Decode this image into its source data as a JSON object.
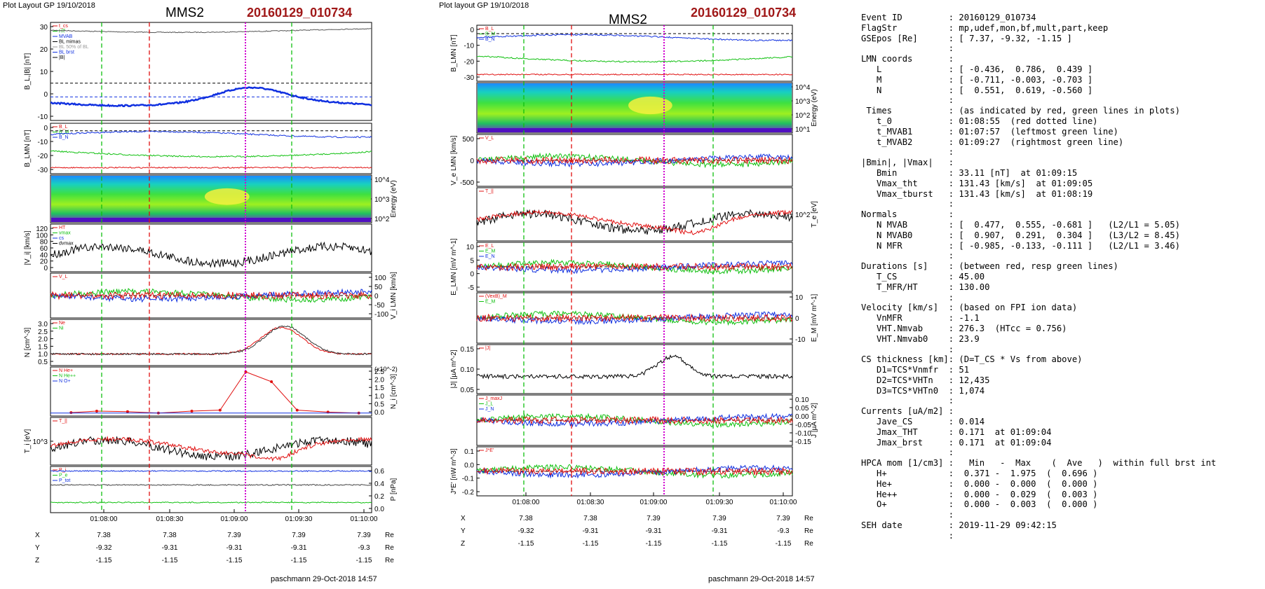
{
  "left": {
    "header": "Plot Layout GP 19/10/2018",
    "spacecraft": "MMS2",
    "event": "20160129_010734",
    "footer": "paschmann 29-Oct-2018 14:57",
    "time_ticks": [
      "01:08:00",
      "01:08:30",
      "01:09:00",
      "01:09:30",
      "01:10:00"
    ],
    "panels": [
      {
        "ylabel": "B_L,|B| [nT]",
        "ticks_left": [
          "30",
          "20",
          "10",
          "0",
          "-10"
        ],
        "legend": [
          "t_cs",
          "HT",
          "MVAB",
          "BL mimas",
          "BL 50% of BL",
          "BL brst",
          "|B|"
        ]
      },
      {
        "ylabel": "B_LMN [nT]",
        "ticks_left": [
          "0",
          "-10",
          "-20",
          "-30"
        ],
        "legend": [
          "B_L",
          "B_M",
          "B_N"
        ]
      },
      {
        "ylabel": "",
        "ticks_right": [
          "10^4",
          "10^3",
          "10^2"
        ],
        "ylabel_right": "Energy (eV)"
      },
      {
        "ylabel": "|V_i| [km/s]",
        "ticks_left": [
          "120",
          "100",
          "80",
          "60",
          "40",
          "20",
          "0"
        ],
        "legend": [
          "HT",
          "vmax",
          "cs",
          "dvmax"
        ]
      },
      {
        "ylabel": "",
        "ticks_right": [
          "100",
          "50",
          "0",
          "-50",
          "-100"
        ],
        "ylabel_right": "V_i LMN [km/s]",
        "legend": [
          "V_L"
        ]
      },
      {
        "ylabel": "N [cm^-3]",
        "ticks_left": [
          "3.0",
          "2.5",
          "2.0",
          "1.5",
          "1.0",
          "0.5"
        ],
        "legend": [
          "Ne",
          "Ni"
        ]
      },
      {
        "ylabel": "",
        "ticks_right": [
          "2.5",
          "2.0",
          "1.5",
          "1.0",
          "0.5",
          "0.0"
        ],
        "ylabel_right": "N_i [cm^-3]",
        "scale_note": "(x10^-2)",
        "legend": [
          "N  He+",
          "N  He++",
          "N  O+"
        ]
      },
      {
        "ylabel": "T_i [eV]",
        "ticks_left": [
          "10^3"
        ],
        "legend": [
          "T_||"
        ]
      },
      {
        "ylabel": "",
        "ticks_right": [
          "0.6",
          "0.4",
          "0.2",
          "0.0"
        ],
        "ylabel_right": "P [nPa]",
        "legend": [
          "P_i",
          "P_e",
          "P_tot"
        ]
      }
    ],
    "orbit": {
      "rows": [
        {
          "label": "X",
          "vals": [
            "7.38",
            "7.38",
            "7.39",
            "7.39",
            "7.39"
          ],
          "unit": "Re"
        },
        {
          "label": "Y",
          "vals": [
            "-9.32",
            "-9.31",
            "-9.31",
            "-9.31",
            "-9.3"
          ],
          "unit": "Re"
        },
        {
          "label": "Z",
          "vals": [
            "-1.15",
            "-1.15",
            "-1.15",
            "-1.15",
            "-1.15"
          ],
          "unit": "Re"
        }
      ]
    }
  },
  "middle": {
    "header": "Plot layout GP 19/10/2018",
    "spacecraft": "MMS2",
    "event": "20160129_010734",
    "footer": "paschmann 29-Oct-2018 14:57",
    "time_ticks": [
      "01:08:00",
      "01:08:30",
      "01:09:00",
      "01:09:30",
      "01:10:00"
    ],
    "panels": [
      {
        "ylabel": "B_LMN [nT]",
        "ticks_left": [
          "0",
          "-10",
          "-20",
          "-30"
        ],
        "legend": [
          "B_L",
          "B_M",
          "B_N"
        ]
      },
      {
        "ylabel": "",
        "ticks_right": [
          "10^4",
          "10^3",
          "10^2",
          "10^1"
        ],
        "ylabel_right": "Energy (eV)"
      },
      {
        "ylabel": "V_e LMN [km/s]",
        "ticks_left": [
          "500",
          "0",
          "-500"
        ],
        "legend": [
          "V_L"
        ]
      },
      {
        "ylabel": "",
        "ticks_right": [
          "10^2"
        ],
        "ylabel_right": "T_e [eV]",
        "legend": [
          "T_||"
        ]
      },
      {
        "ylabel": "E_LMN [mV m^-1]",
        "ticks_left": [
          "10",
          "5",
          "0",
          "-5"
        ],
        "legend": [
          "E_L",
          "E_M",
          "E_N"
        ]
      },
      {
        "ylabel": "",
        "ticks_right": [
          "10",
          "0",
          "-10"
        ],
        "ylabel_right": "E_M [mV m^-1]",
        "legend": [
          "(VexB)_M",
          "E_M"
        ]
      },
      {
        "ylabel": "|J| [µA m^-2]",
        "ticks_left": [
          "0.15",
          "0.10",
          "0.05"
        ],
        "legend": [
          "|J|"
        ]
      },
      {
        "ylabel": "",
        "ticks_right": [
          "0.10",
          "0.05",
          "0.00",
          "-0.05",
          "-0.10",
          "-0.15"
        ],
        "ylabel_right": "J [µA m^-2]",
        "legend": [
          "J_maxJ",
          "J_L",
          "J_N"
        ]
      },
      {
        "ylabel": "J*E' [nW m^-3]",
        "ticks_left": [
          "0.1",
          "0.0",
          "-0.1",
          "-0.2"
        ],
        "legend": [
          "J*E'"
        ]
      }
    ],
    "orbit": {
      "rows": [
        {
          "label": "X",
          "vals": [
            "7.38",
            "7.38",
            "7.39",
            "7.39",
            "7.39"
          ],
          "unit": "Re"
        },
        {
          "label": "Y",
          "vals": [
            "-9.32",
            "-9.31",
            "-9.31",
            "-9.31",
            "-9.3"
          ],
          "unit": "Re"
        },
        {
          "label": "Z",
          "vals": [
            "-1.15",
            "-1.15",
            "-1.15",
            "-1.15",
            "-1.15"
          ],
          "unit": "Re"
        }
      ]
    }
  },
  "info_lines": [
    "Event ID         : 20160129_010734",
    "FlagStr          : mp,udef,mon,bf,mult,part,keep",
    "GSEpos [Re]      : [ 7.37, -9.32, -1.15 ]",
    "                 :",
    "LMN coords       :",
    "   L             : [ -0.436,  0.786,  0.439 ]",
    "   M             : [ -0.711, -0.003, -0.703 ]",
    "   N             : [  0.551,  0.619, -0.560 ]",
    "                 :",
    " Times           : (as indicated by red, green lines in plots)",
    "   t_0           : 01:08:55  (red dotted line)",
    "   t_MVAB1       : 01:07:57  (leftmost green line)",
    "   t_MVAB2       : 01:09:27  (rightmost green line)",
    "                 :",
    "|Bmin|, |Vmax|   :",
    "   Bmin          : 33.11 [nT]  at 01:09:15",
    "   Vmax_tht      : 131.43 [km/s]  at 01:09:05",
    "   Vmax_tburst   : 131.43 [km/s]  at 01:08:19",
    "                 :",
    "Normals          :",
    "   N MVAB        : [  0.477,  0.555, -0.681 ]   (L2/L1 = 5.05)",
    "   N MVAB0       : [  0.907,  0.291,  0.304 ]   (L3/L2 = 8.45)",
    "   N MFR         : [ -0.985, -0.133, -0.111 ]   (L2/L1 = 3.46)",
    "                 :",
    "Durations [s]    : (between red, resp green lines)",
    "   T_CS          : 45.00",
    "   T_MFR/HT      : 130.00",
    "                 :",
    "Velocity [km/s]  : (based on FPI ion data)",
    "   VnMFR         : -1.1",
    "   VHT.Nmvab     : 276.3  (HTcc = 0.756)",
    "   VHT.Nmvab0    : 23.9",
    "                 :",
    "CS thickness [km]: (D=T_CS * Vs from above)",
    "   D1=TCS*Vnmfr  : 51",
    "   D2=TCS*VHTn   : 12,435",
    "   D3=TCS*VHTn0  : 1,074",
    "                 :",
    "Currents [uA/m2] :",
    "   Jave_CS       : 0.014",
    "   Jmax_THT      : 0.171  at 01:09:04",
    "   Jmax_brst     : 0.171  at 01:09:04",
    "                 :",
    "HPCA mom [1/cm3] :   Min   -  Max    (  Ave   )  within full brst int",
    "   H+            :  0.371 -  1.975  (  0.696 )",
    "   He+           :  0.000 -  0.000  (  0.000 )",
    "   He++          :  0.000 -  0.029  (  0.003 )",
    "   O+            :  0.000 -  0.003  (  0.000 )",
    "                 :",
    "SEH date         : 2019-11-29 09:42:15",
    "                 :"
  ],
  "colors": {
    "red": "#e01010",
    "green": "#10c010",
    "blue": "#1030e0",
    "black": "#000000",
    "magenta": "#d000d0",
    "gray": "#999999",
    "event": "#a01818"
  }
}
